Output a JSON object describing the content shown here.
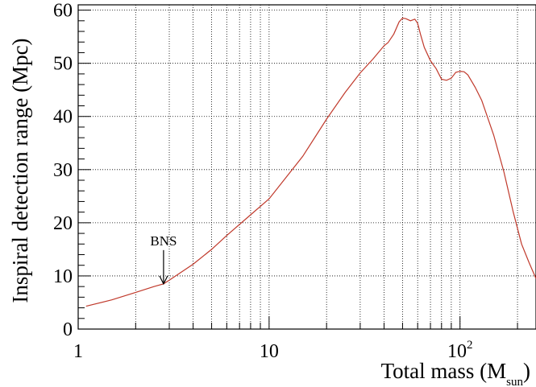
{
  "chart_data": {
    "type": "line",
    "xlabel": "Total mass (M",
    "xlabel_sub": "sun",
    "xlabel_close": ")",
    "ylabel": "Inspiral detection range (Mpc)",
    "x_scale": "log",
    "xlim": [
      1,
      250
    ],
    "ylim": [
      0,
      61
    ],
    "grid": true,
    "line_color": "#c0392b",
    "x_ticks": [
      {
        "value": 1,
        "label": "1"
      },
      {
        "value": 10,
        "label": "10"
      },
      {
        "value": 100,
        "label": "10",
        "sup": "2"
      }
    ],
    "y_ticks": [
      {
        "value": 0,
        "label": "0"
      },
      {
        "value": 10,
        "label": "10"
      },
      {
        "value": 20,
        "label": "20"
      },
      {
        "value": 30,
        "label": "30"
      },
      {
        "value": 40,
        "label": "40"
      },
      {
        "value": 50,
        "label": "50"
      },
      {
        "value": 60,
        "label": "60"
      }
    ],
    "annotation": {
      "text": "BNS",
      "x": 2.8,
      "y": 8.5
    },
    "series": [
      {
        "x": [
          1.1,
          1.5,
          2,
          2.5,
          2.8,
          3,
          4,
          5,
          6,
          8,
          10,
          15,
          20,
          25,
          30,
          35,
          40,
          42,
          45,
          48,
          50,
          52,
          55,
          58,
          60,
          62,
          65,
          70,
          75,
          80,
          85,
          90,
          95,
          100,
          105,
          110,
          120,
          130,
          150,
          170,
          190,
          210,
          230,
          250
        ],
        "y": [
          4.3,
          5.5,
          6.9,
          8.0,
          8.5,
          9.2,
          12.2,
          15.0,
          17.6,
          21.5,
          24.5,
          32.5,
          39.5,
          44.5,
          48.2,
          50.8,
          53.3,
          53.9,
          55.5,
          57.8,
          58.5,
          58.4,
          58.0,
          58.3,
          57.5,
          55.5,
          53.0,
          50.5,
          49.0,
          47.0,
          46.8,
          47.2,
          48.3,
          48.5,
          48.4,
          47.8,
          45.5,
          43.0,
          36.5,
          29.5,
          22.0,
          16.0,
          12.5,
          9.5
        ]
      }
    ]
  }
}
